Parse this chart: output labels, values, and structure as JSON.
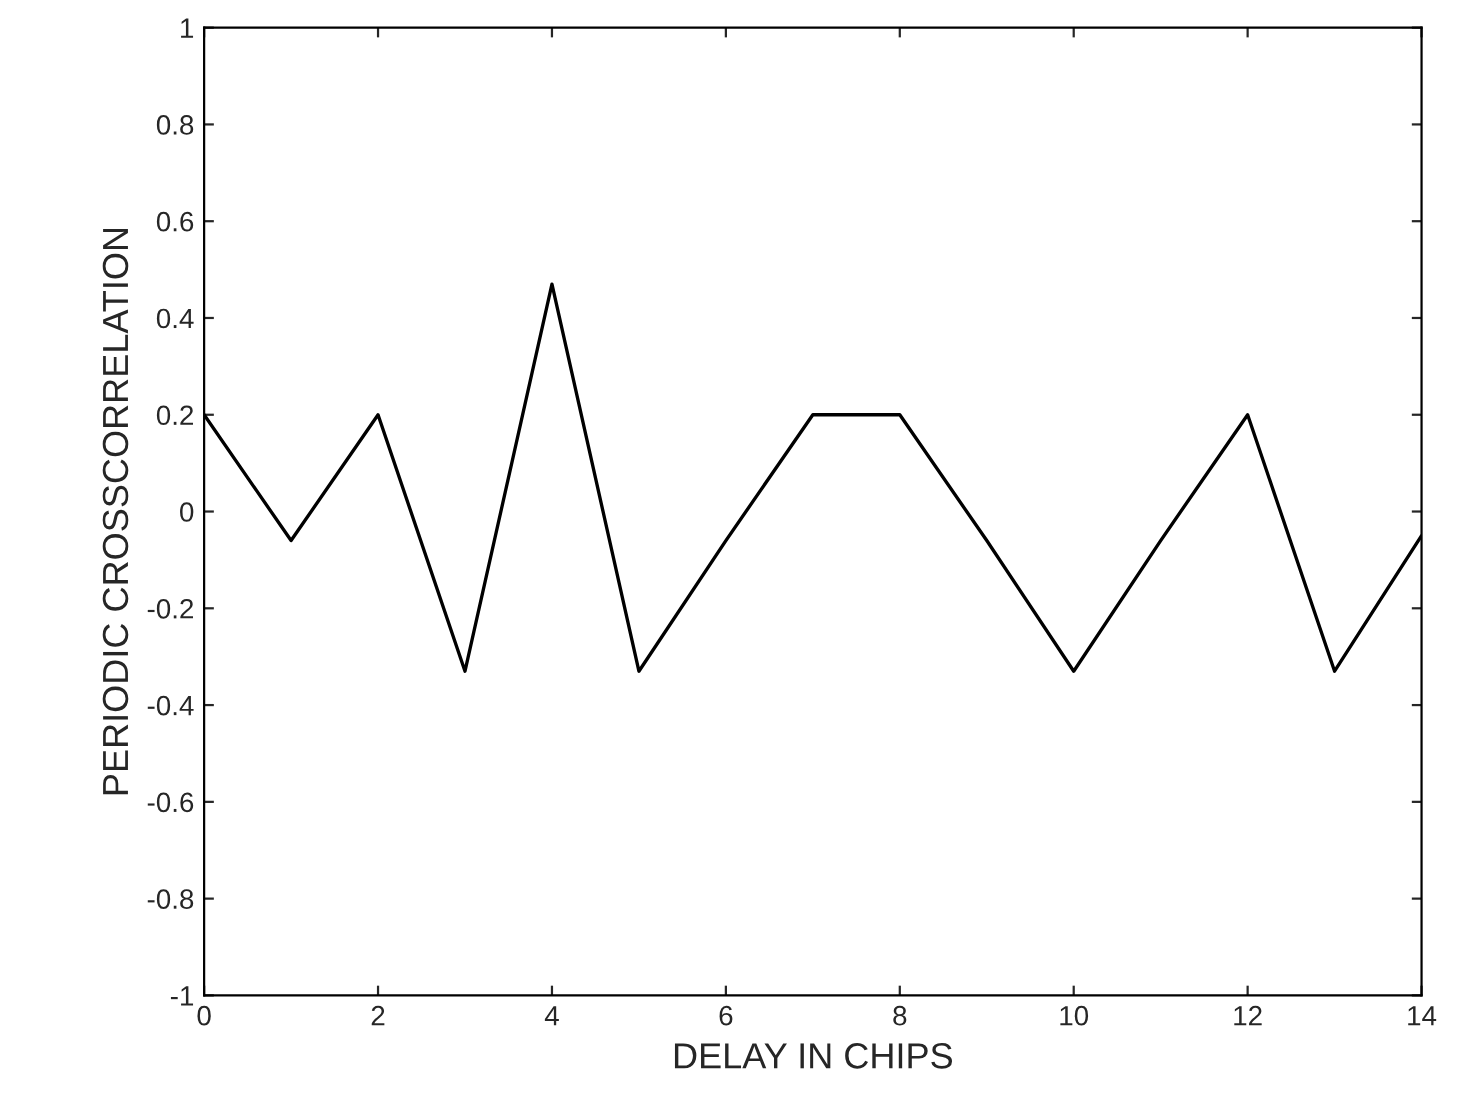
{
  "chart_data": {
    "type": "line",
    "xlabel": "DELAY IN CHIPS",
    "ylabel": "PERIODIC CROSSCORRELATION",
    "x": [
      0,
      1,
      2,
      3,
      4,
      5,
      6,
      7,
      8,
      9,
      10,
      11,
      12,
      13,
      14
    ],
    "series": [
      {
        "color": "#000000",
        "values": [
          0.2,
          -0.06,
          0.2,
          -0.33,
          0.47,
          -0.33,
          -0.06,
          0.2,
          0.2,
          -0.06,
          -0.33,
          -0.06,
          0.2,
          -0.33,
          -0.05
        ]
      }
    ],
    "xlim": [
      0,
      14
    ],
    "xticks": [
      0,
      2,
      4,
      6,
      8,
      10,
      12,
      14
    ],
    "ylim": [
      -1,
      1
    ],
    "yticks": [
      -1,
      -0.8,
      -0.6,
      -0.4,
      -0.2,
      0,
      0.2,
      0.4,
      0.6,
      0.8,
      1
    ],
    "grid": false,
    "legend": false,
    "marker": "none",
    "line_style": "solid"
  }
}
